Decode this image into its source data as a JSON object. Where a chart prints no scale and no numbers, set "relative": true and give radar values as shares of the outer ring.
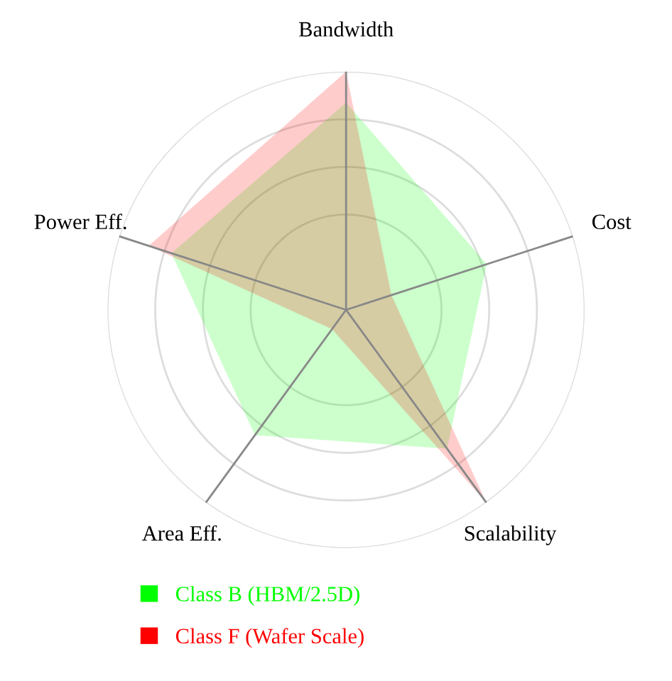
{
  "chart_data": {
    "type": "radar",
    "relative": true,
    "categories": [
      "Bandwidth",
      "Cost",
      "Scalability",
      "Area Eff.",
      "Power Eff."
    ],
    "series": [
      {
        "name": "Class B (HBM/2.5D)",
        "color": "#00ff00",
        "values": [
          0.87,
          0.62,
          0.72,
          0.65,
          0.77
        ]
      },
      {
        "name": "Class F (Wafer Scale)",
        "color": "#ff0000",
        "values": [
          1.0,
          0.2,
          1.0,
          0.1,
          0.87
        ]
      }
    ],
    "grid": true,
    "legend": "bottom left"
  }
}
